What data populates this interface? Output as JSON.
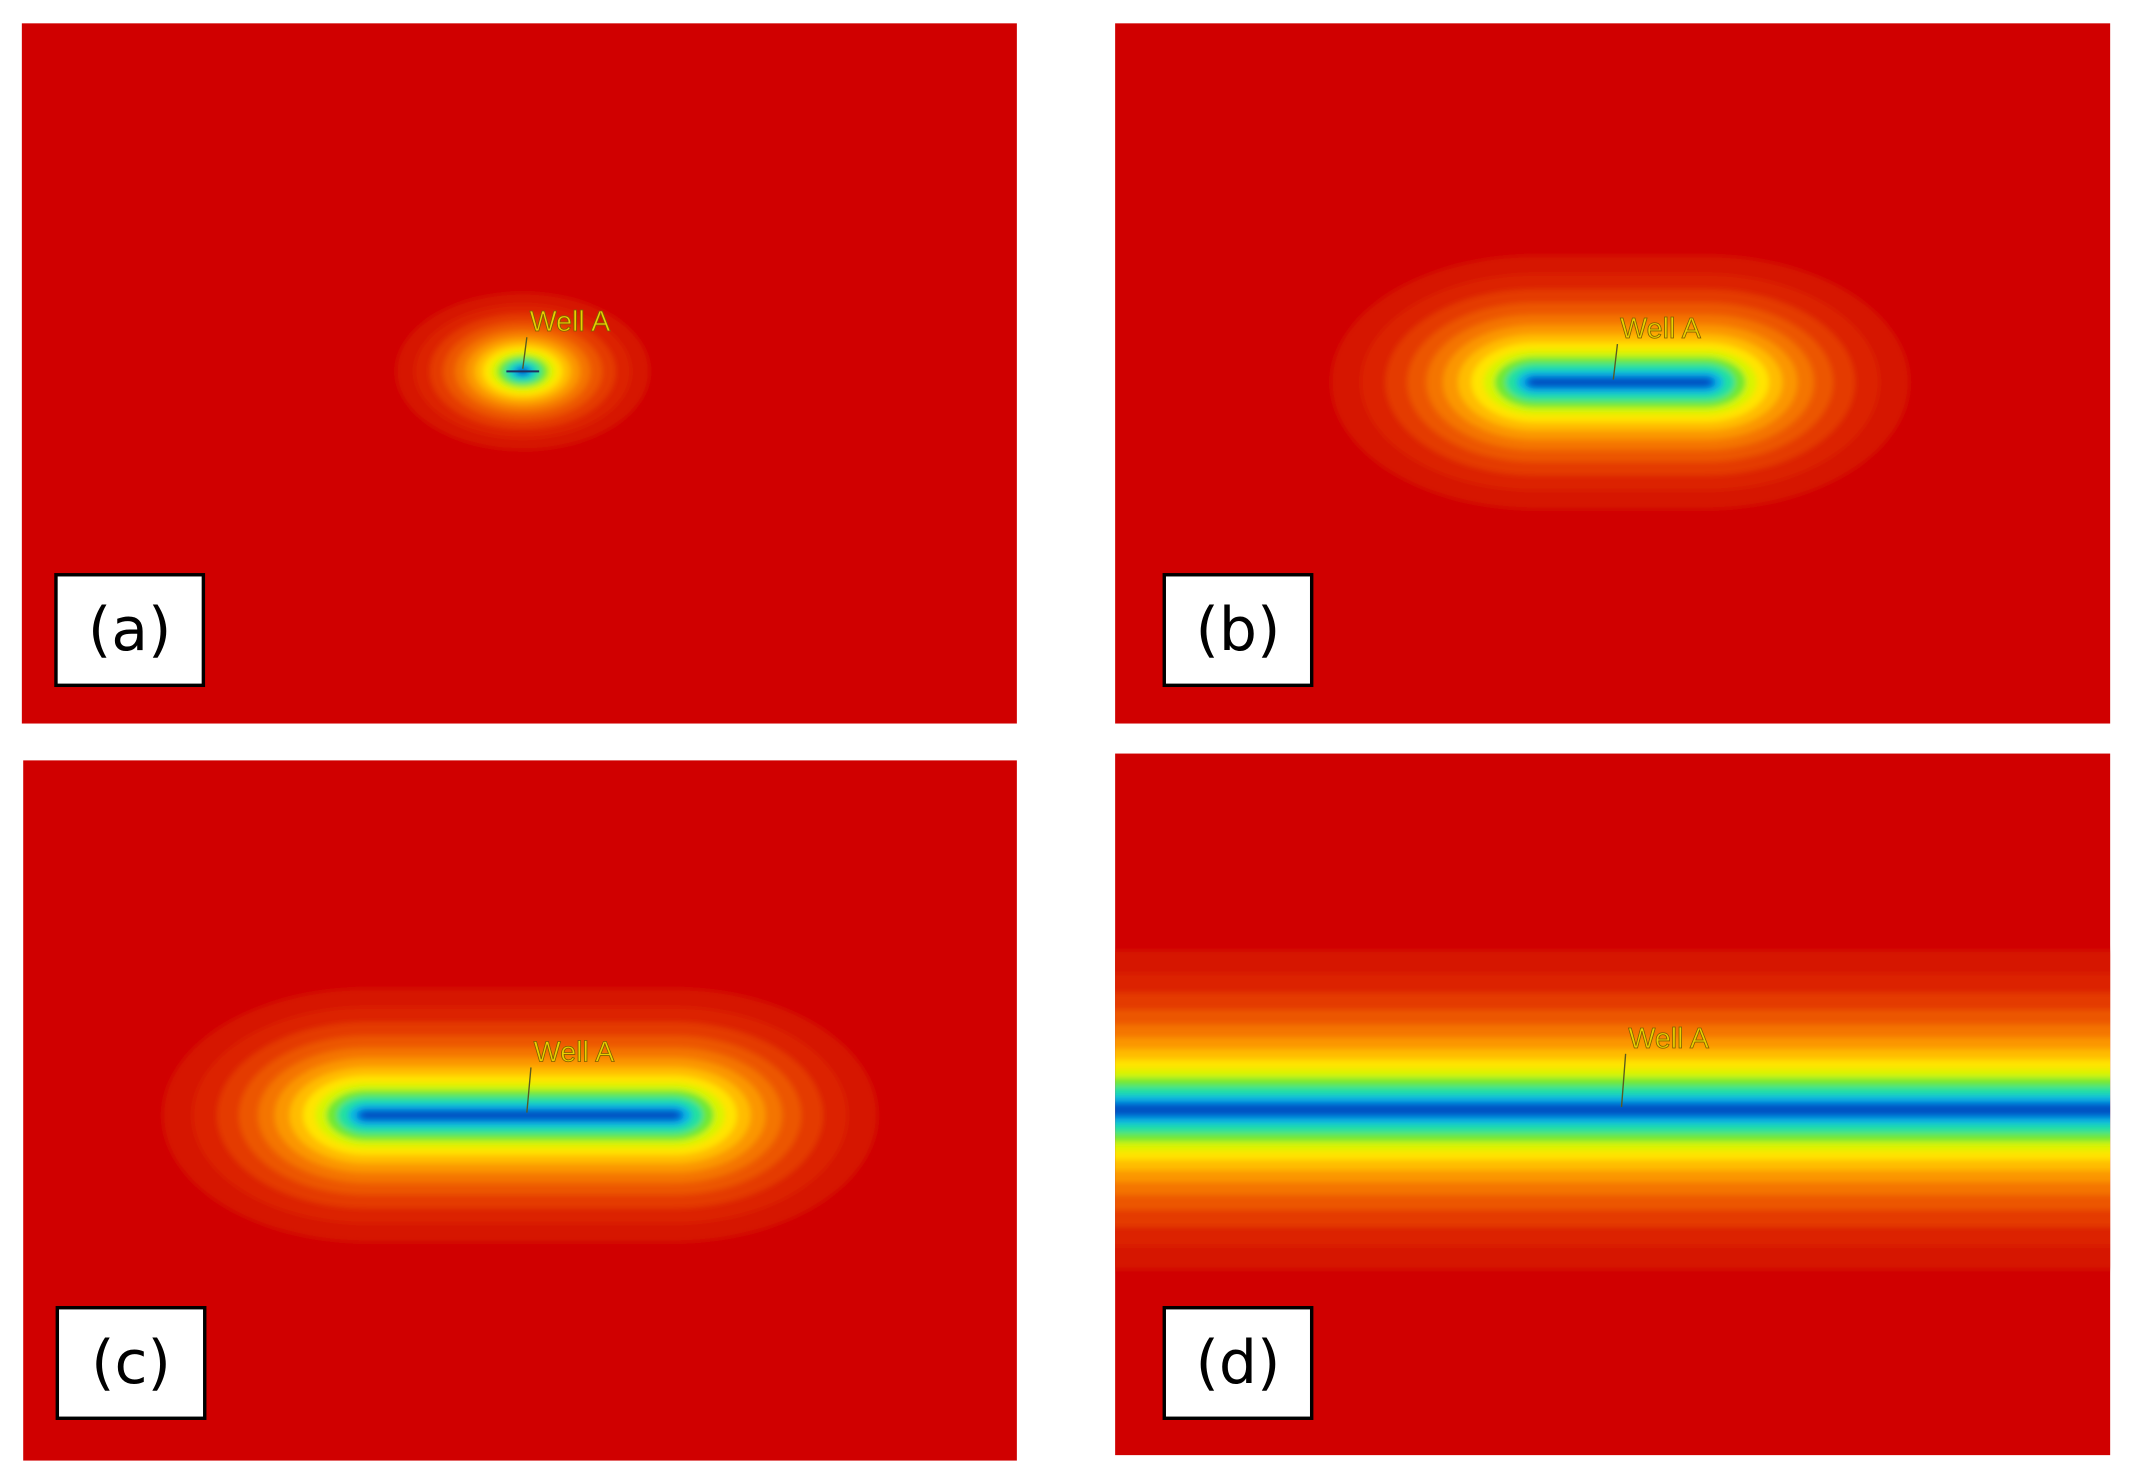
{
  "panels": [
    {
      "label": "(a)",
      "well_label": "Well A"
    },
    {
      "label": "(b)",
      "well_label": "Well A"
    },
    {
      "label": "(c)",
      "well_label": "Well A"
    },
    {
      "label": "(d)",
      "well_label": "Well A"
    }
  ]
}
